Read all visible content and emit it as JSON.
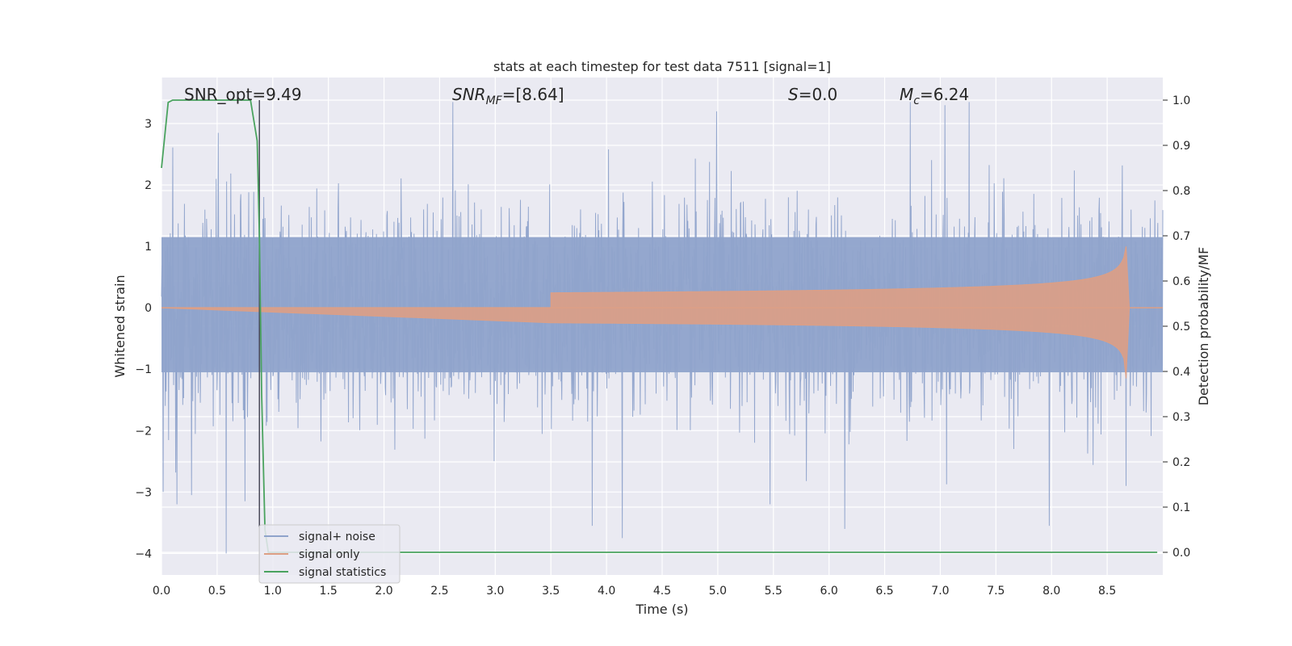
{
  "chart_data": {
    "type": "line",
    "title": "stats at each timestep for test data 7511 [signal=1]",
    "xlabel": "Time (s)",
    "ylabel": "Whitened strain",
    "y2label": "Detection probability/MF",
    "xlim": [
      0,
      9.0
    ],
    "ylim": [
      -4.35,
      3.75
    ],
    "y2lim": [
      -0.05,
      1.05
    ],
    "x_ticks": [
      "0.0",
      "0.5",
      "1.0",
      "1.5",
      "2.0",
      "2.5",
      "3.0",
      "3.5",
      "4.0",
      "4.5",
      "5.0",
      "5.5",
      "6.0",
      "6.5",
      "7.0",
      "7.5",
      "8.0",
      "8.5"
    ],
    "y_ticks": [
      "3",
      "2",
      "1",
      "0",
      "−1",
      "−2",
      "−3",
      "−4"
    ],
    "y2_ticks": [
      "1.0",
      "0.9",
      "0.8",
      "0.7",
      "0.6",
      "0.5",
      "0.4",
      "0.3",
      "0.2",
      "0.1",
      "0.0"
    ],
    "grid": true,
    "legend_placement": "lower-left",
    "annotations": {
      "snr_opt": "SNR_opt=9.49",
      "snr_mf_main": "SNR",
      "snr_mf_sub": "MF",
      "snr_mf_tail": "=[8.64]",
      "s_main": "S",
      "s_tail": "=0.0",
      "mc_main": "M",
      "mc_sub": "c",
      "mc_tail": "=6.24"
    },
    "marker_line_x": 0.88,
    "series": [
      {
        "name": "signal+ noise",
        "color": "#8fa3cb",
        "noise_sigma": 1.0,
        "peaks": [
          {
            "x": 0.58,
            "y": -4.0
          },
          {
            "x": 0.14,
            "y": -3.2
          },
          {
            "x": 0.27,
            "y": -3.05
          },
          {
            "x": 0.75,
            "y": -3.15
          },
          {
            "x": 0.51,
            "y": 2.85
          },
          {
            "x": 2.62,
            "y": 3.35
          },
          {
            "x": 3.87,
            "y": -3.55
          },
          {
            "x": 4.14,
            "y": -3.75
          },
          {
            "x": 5.47,
            "y": -3.2
          },
          {
            "x": 6.14,
            "y": -3.6
          },
          {
            "x": 7.26,
            "y": 3.35
          },
          {
            "x": 7.98,
            "y": -3.55
          },
          {
            "x": 6.73,
            "y": 3.35
          },
          {
            "x": 7.04,
            "y": 3.3
          },
          {
            "x": 4.99,
            "y": 3.2
          },
          {
            "x": 8.67,
            "y": -2.9
          }
        ]
      },
      {
        "name": "signal only",
        "color": "#dd9f85",
        "chirp": {
          "start": 3.5,
          "merger": 8.67,
          "peak_amplitude": 1.0
        }
      },
      {
        "name": "signal statistics",
        "color": "#4aa35f",
        "points": [
          [
            0.0,
            0.85
          ],
          [
            0.06,
            0.995
          ],
          [
            0.1,
            1.0
          ],
          [
            0.8,
            1.0
          ],
          [
            0.86,
            0.91
          ],
          [
            0.88,
            0.7
          ],
          [
            0.9,
            0.35
          ],
          [
            0.93,
            0.05
          ],
          [
            0.96,
            0.0
          ],
          [
            8.95,
            0.0
          ]
        ]
      }
    ]
  }
}
